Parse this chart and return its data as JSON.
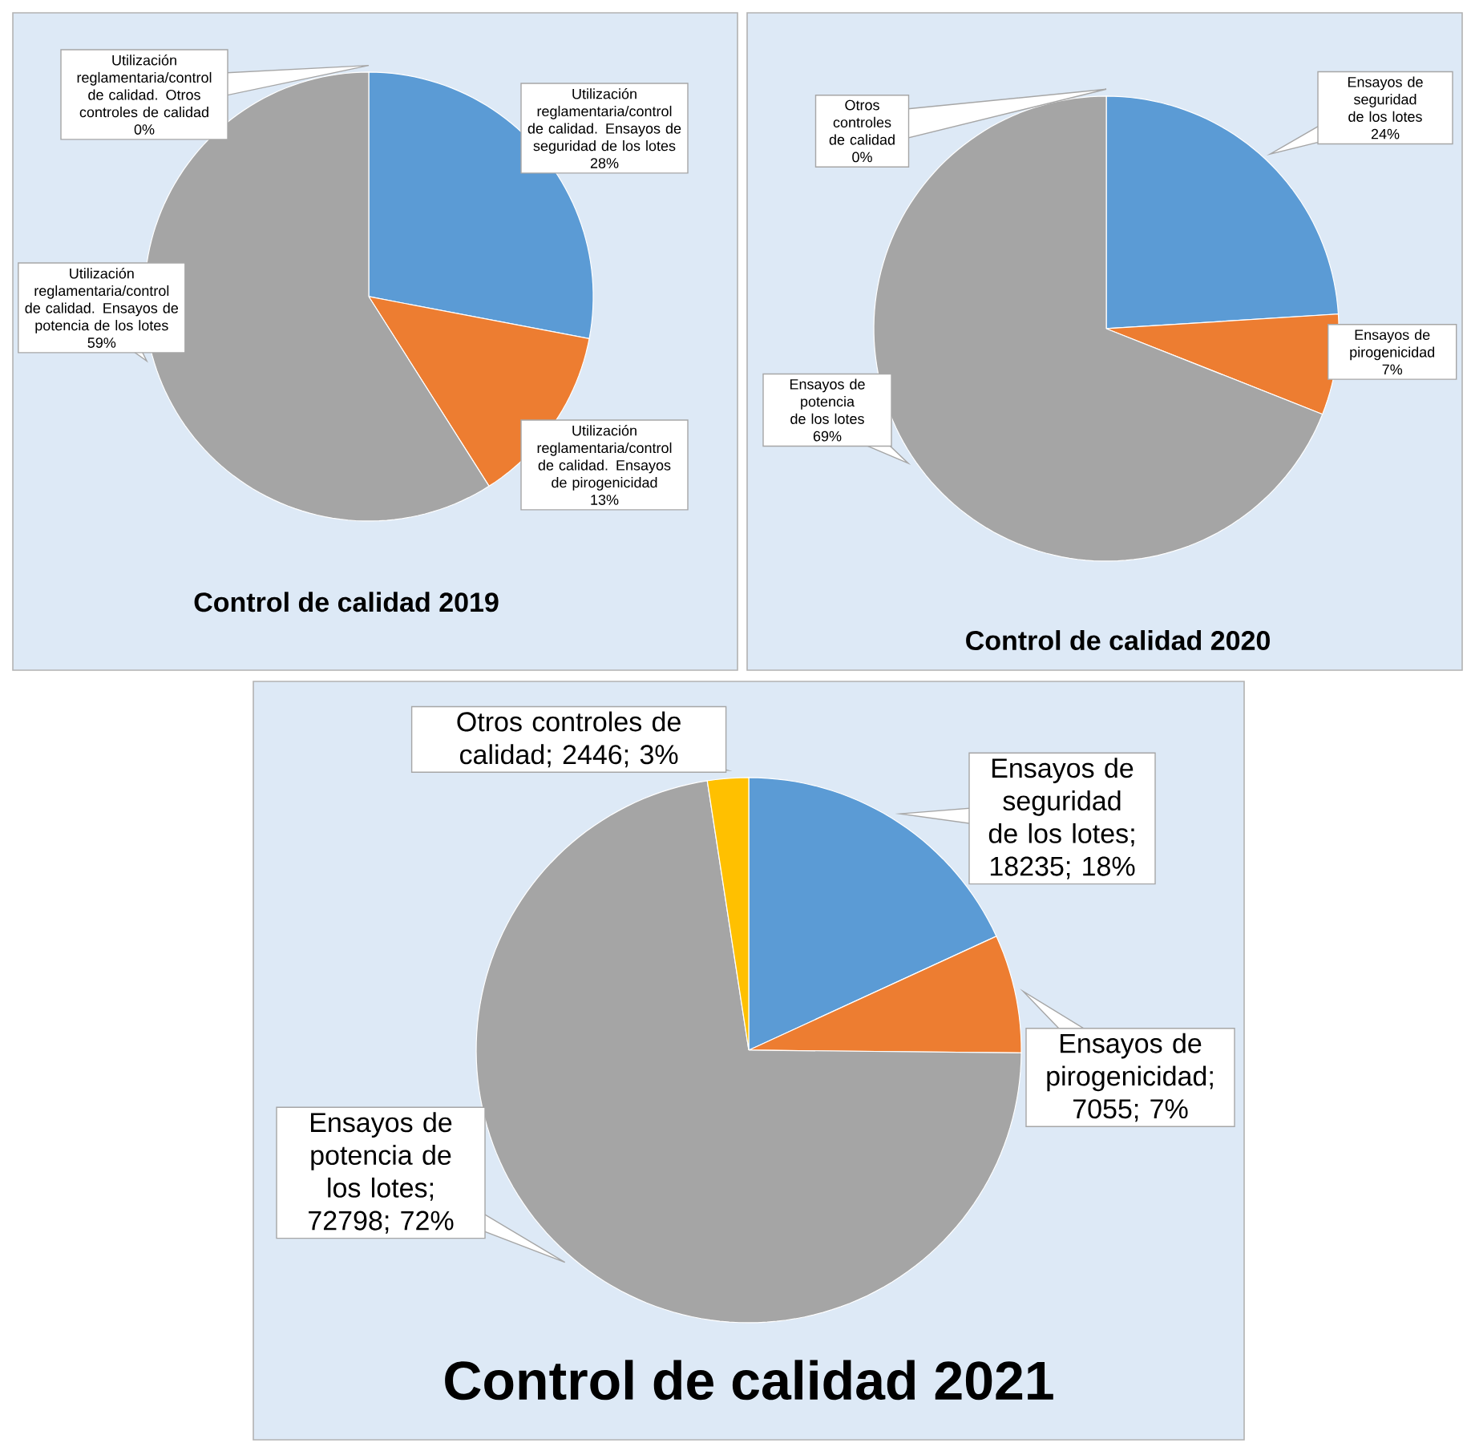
{
  "chart_data": [
    {
      "type": "pie",
      "title": "Control de calidad 2019",
      "categories": [
        "Utilización reglamentaria/control de calidad. Ensayos de seguridad de los lotes",
        "Utilización reglamentaria/control de calidad. Ensayos de pirogenicidad",
        "Utilización reglamentaria/control de calidad. Ensayos de potencia de los lotes",
        "Utilización reglamentaria/control de calidad. Otros controles de calidad"
      ],
      "values": [
        28,
        13,
        59,
        0
      ],
      "value_labels": [
        "28%",
        "13%",
        "59%",
        "0%"
      ],
      "colors": [
        "#5b9bd5",
        "#ed7d31",
        "#a5a5a5",
        "#ffc000"
      ]
    },
    {
      "type": "pie",
      "title": "Control de calidad 2020",
      "categories": [
        "Ensayos de seguridad de los lotes",
        "Ensayos de pirogenicidad",
        "Ensayos de potencia de los lotes",
        "Otros controles de calidad"
      ],
      "values": [
        24,
        7,
        69,
        0
      ],
      "value_labels": [
        "24%",
        "7%",
        "69%",
        "0%"
      ],
      "colors": [
        "#5b9bd5",
        "#ed7d31",
        "#a5a5a5",
        "#ffc000"
      ]
    },
    {
      "type": "pie",
      "title": "Control de calidad 2021",
      "categories": [
        "Ensayos de seguridad de los lotes",
        "Ensayos de pirogenicidad",
        "Ensayos de potencia de los lotes",
        "Otros controles de calidad"
      ],
      "values": [
        18235,
        7055,
        72798,
        2446
      ],
      "value_labels": [
        "; 18235; 18%",
        "; 7055; 7%",
        "; 72798; 72%",
        "; 2446; 3%"
      ],
      "colors": [
        "#5b9bd5",
        "#ed7d31",
        "#a5a5a5",
        "#ffc000"
      ]
    }
  ]
}
